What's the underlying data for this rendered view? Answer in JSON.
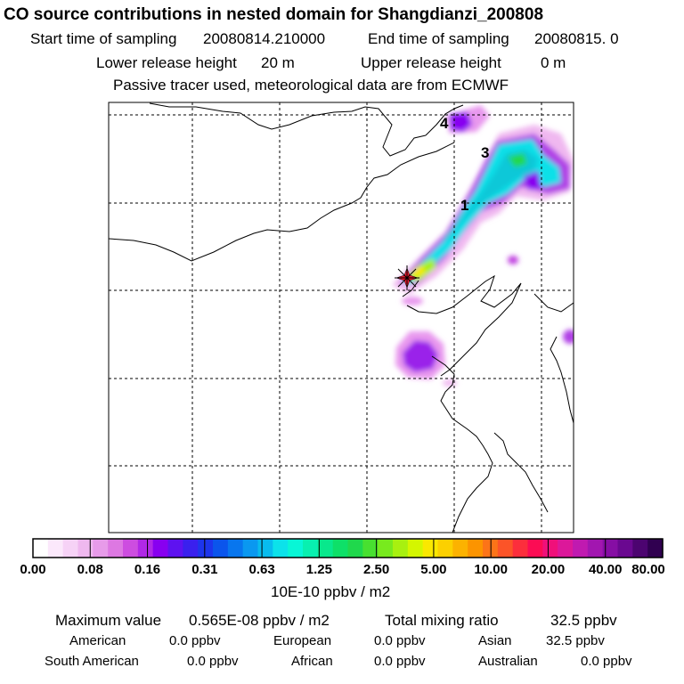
{
  "header": {
    "title": "CO  source contributions in nested domain for Shangdianzi_200808",
    "start_label": "Start time of sampling",
    "start_value": "20080814.210000",
    "end_label": "End time of sampling",
    "end_value": "20080815.     0",
    "lower_label": "Lower release height",
    "lower_value": "20 m",
    "upper_label": "Upper release height",
    "upper_value": "0 m",
    "note": "Passive tracer used, meteorological data are from ECMWF"
  },
  "map": {
    "cluster_labels": [
      "4",
      "3",
      "1"
    ],
    "release_site_icon": "star-marker-icon"
  },
  "colorbar": {
    "ticks": [
      "0.00",
      "0.08",
      "0.16",
      "0.31",
      "0.63",
      "1.25",
      "2.50",
      "5.00",
      "10.00",
      "20.00",
      "40.00",
      "80.00"
    ],
    "unit": "10E-10 ppbv / m2",
    "colors": [
      "#ffffff",
      "#fbe8fb",
      "#f6d2f6",
      "#efb8ef",
      "#e79be9",
      "#dd78e2",
      "#cd4de0",
      "#b028e6",
      "#8800f0",
      "#5e12f0",
      "#3a20ee",
      "#1d35ec",
      "#0b55ec",
      "#0876ee",
      "#0a98f0",
      "#08bcee",
      "#0ce2ea",
      "#08f6d6",
      "#08f0b0",
      "#08e88c",
      "#0ee068",
      "#20d84c",
      "#48e030",
      "#78ea1e",
      "#a8f010",
      "#d4f600",
      "#fae800",
      "#fcd000",
      "#fcb200",
      "#fc9400",
      "#fc7418",
      "#fc5428",
      "#fc2e3c",
      "#fc0c54",
      "#f0107a",
      "#dc189a",
      "#c01ab0",
      "#a216b0",
      "#860ea4",
      "#6a0890",
      "#4c0470",
      "#300050"
    ]
  },
  "stats": {
    "max_label": "Maximum value",
    "max_value": "0.565E-08 ppbv / m2",
    "total_label": "Total mixing ratio",
    "total_value": "32.5 ppbv",
    "american_label": "American",
    "american_value": "0.0 ppbv",
    "european_label": "European",
    "european_value": "0.0 ppbv",
    "asian_label": "Asian",
    "asian_value": "32.5 ppbv",
    "south_american_label": "South American",
    "south_american_value": "0.0 ppbv",
    "african_label": "African",
    "african_value": "0.0 ppbv",
    "australian_label": "Australian",
    "australian_value": "0.0 ppbv"
  }
}
